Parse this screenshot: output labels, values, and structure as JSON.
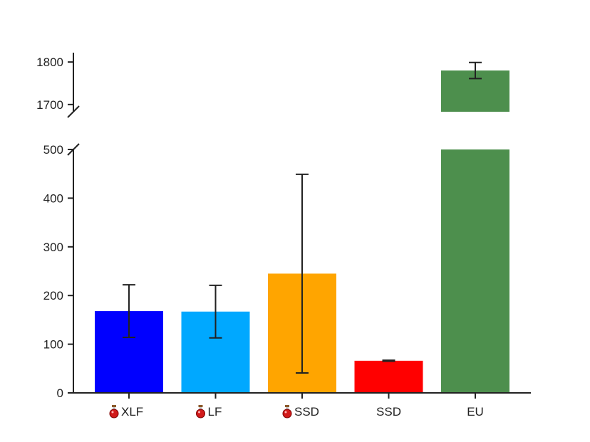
{
  "chart_data": {
    "type": "bar",
    "broken_axis": true,
    "categories": [
      "XLF",
      "LF",
      "SSD",
      "SSD",
      "EU"
    ],
    "category_icons": [
      "potion-icon",
      "potion-icon",
      "potion-icon",
      null,
      null
    ],
    "values": [
      168,
      167,
      245,
      66,
      1780
    ],
    "errors": [
      54,
      54,
      204,
      1,
      19
    ],
    "colors": [
      "#0000ff",
      "#00a8ff",
      "#ffa500",
      "#ff0000",
      "#4d8f4d"
    ],
    "lower_ylim": [
      0,
      500
    ],
    "upper_ylim": [
      1683,
      1822
    ],
    "lower_yticks": [
      0,
      100,
      200,
      300,
      400,
      500
    ],
    "upper_yticks": [
      1700,
      1800
    ],
    "title": "",
    "xlabel": "",
    "ylabel": "",
    "grid": false
  }
}
